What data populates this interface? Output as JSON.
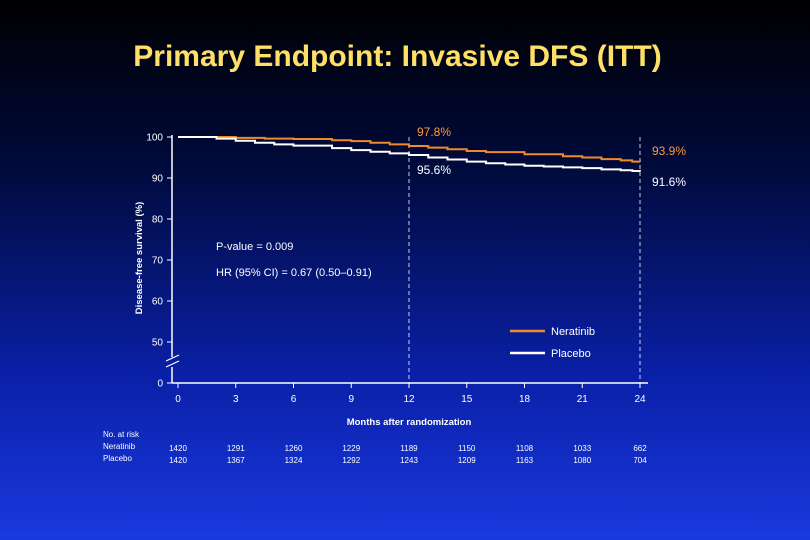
{
  "slide": {
    "title": "Primary Endpoint: Invasive DFS (ITT)"
  },
  "colors": {
    "neratinib": "#f08a28",
    "placebo": "#ffffff",
    "accent_title": "#ffe066"
  },
  "chart_data": {
    "type": "line",
    "title": "Primary Endpoint: Invasive DFS (ITT)",
    "xlabel": "Months after randomization",
    "ylabel": "Disease-free survival (%)",
    "xlim": [
      0,
      24
    ],
    "ylim": [
      0,
      100
    ],
    "x_ticks": [
      0,
      3,
      6,
      9,
      12,
      15,
      18,
      21,
      24
    ],
    "y_ticks": [
      0,
      50,
      60,
      70,
      80,
      90,
      100
    ],
    "series": [
      {
        "name": "Neratinib",
        "x": [
          0,
          1.5,
          3,
          4.5,
          6,
          8,
          9,
          10,
          11,
          12,
          13,
          14,
          15,
          16,
          18,
          20,
          21,
          22,
          23,
          23.6,
          24
        ],
        "y": [
          100,
          100,
          99.8,
          99.6,
          99.5,
          99.2,
          99.0,
          98.6,
          98.2,
          97.8,
          97.4,
          97.0,
          96.6,
          96.3,
          95.8,
          95.3,
          95.0,
          94.6,
          94.3,
          94.0,
          93.9
        ]
      },
      {
        "name": "Placebo",
        "x": [
          0,
          1.5,
          2,
          3,
          4,
          5,
          6,
          8,
          9,
          10,
          11,
          12,
          13,
          14,
          15,
          16,
          17,
          18,
          19,
          20,
          21,
          22,
          23,
          23.6,
          24
        ],
        "y": [
          100,
          100,
          99.6,
          99.1,
          98.6,
          98.2,
          97.9,
          97.3,
          96.8,
          96.4,
          96.0,
          95.6,
          95.0,
          94.5,
          94.0,
          93.6,
          93.3,
          93.0,
          92.8,
          92.6,
          92.4,
          92.1,
          91.9,
          91.7,
          91.6
        ]
      }
    ],
    "annotations": {
      "neratinib_24m": "93.9%",
      "placebo_24m": "91.6%",
      "neratinib_12m": "97.8%",
      "placebo_12m": "95.6%",
      "p_value": "P-value = 0.009",
      "hr": "HR (95% CI) = 0.67 (0.50–0.91)"
    },
    "legend": {
      "position": "bottom-right",
      "entries": [
        "Neratinib",
        "Placebo"
      ]
    },
    "risk_table": {
      "header": "No. at risk",
      "rows": [
        {
          "label": "Neratinib",
          "values": [
            "1420",
            "1291",
            "1260",
            "1229",
            "1189",
            "1150",
            "1108",
            "1033",
            "662"
          ]
        },
        {
          "label": "Placebo",
          "values": [
            "1420",
            "1367",
            "1324",
            "1292",
            "1243",
            "1209",
            "1163",
            "1080",
            "704"
          ]
        }
      ]
    }
  }
}
